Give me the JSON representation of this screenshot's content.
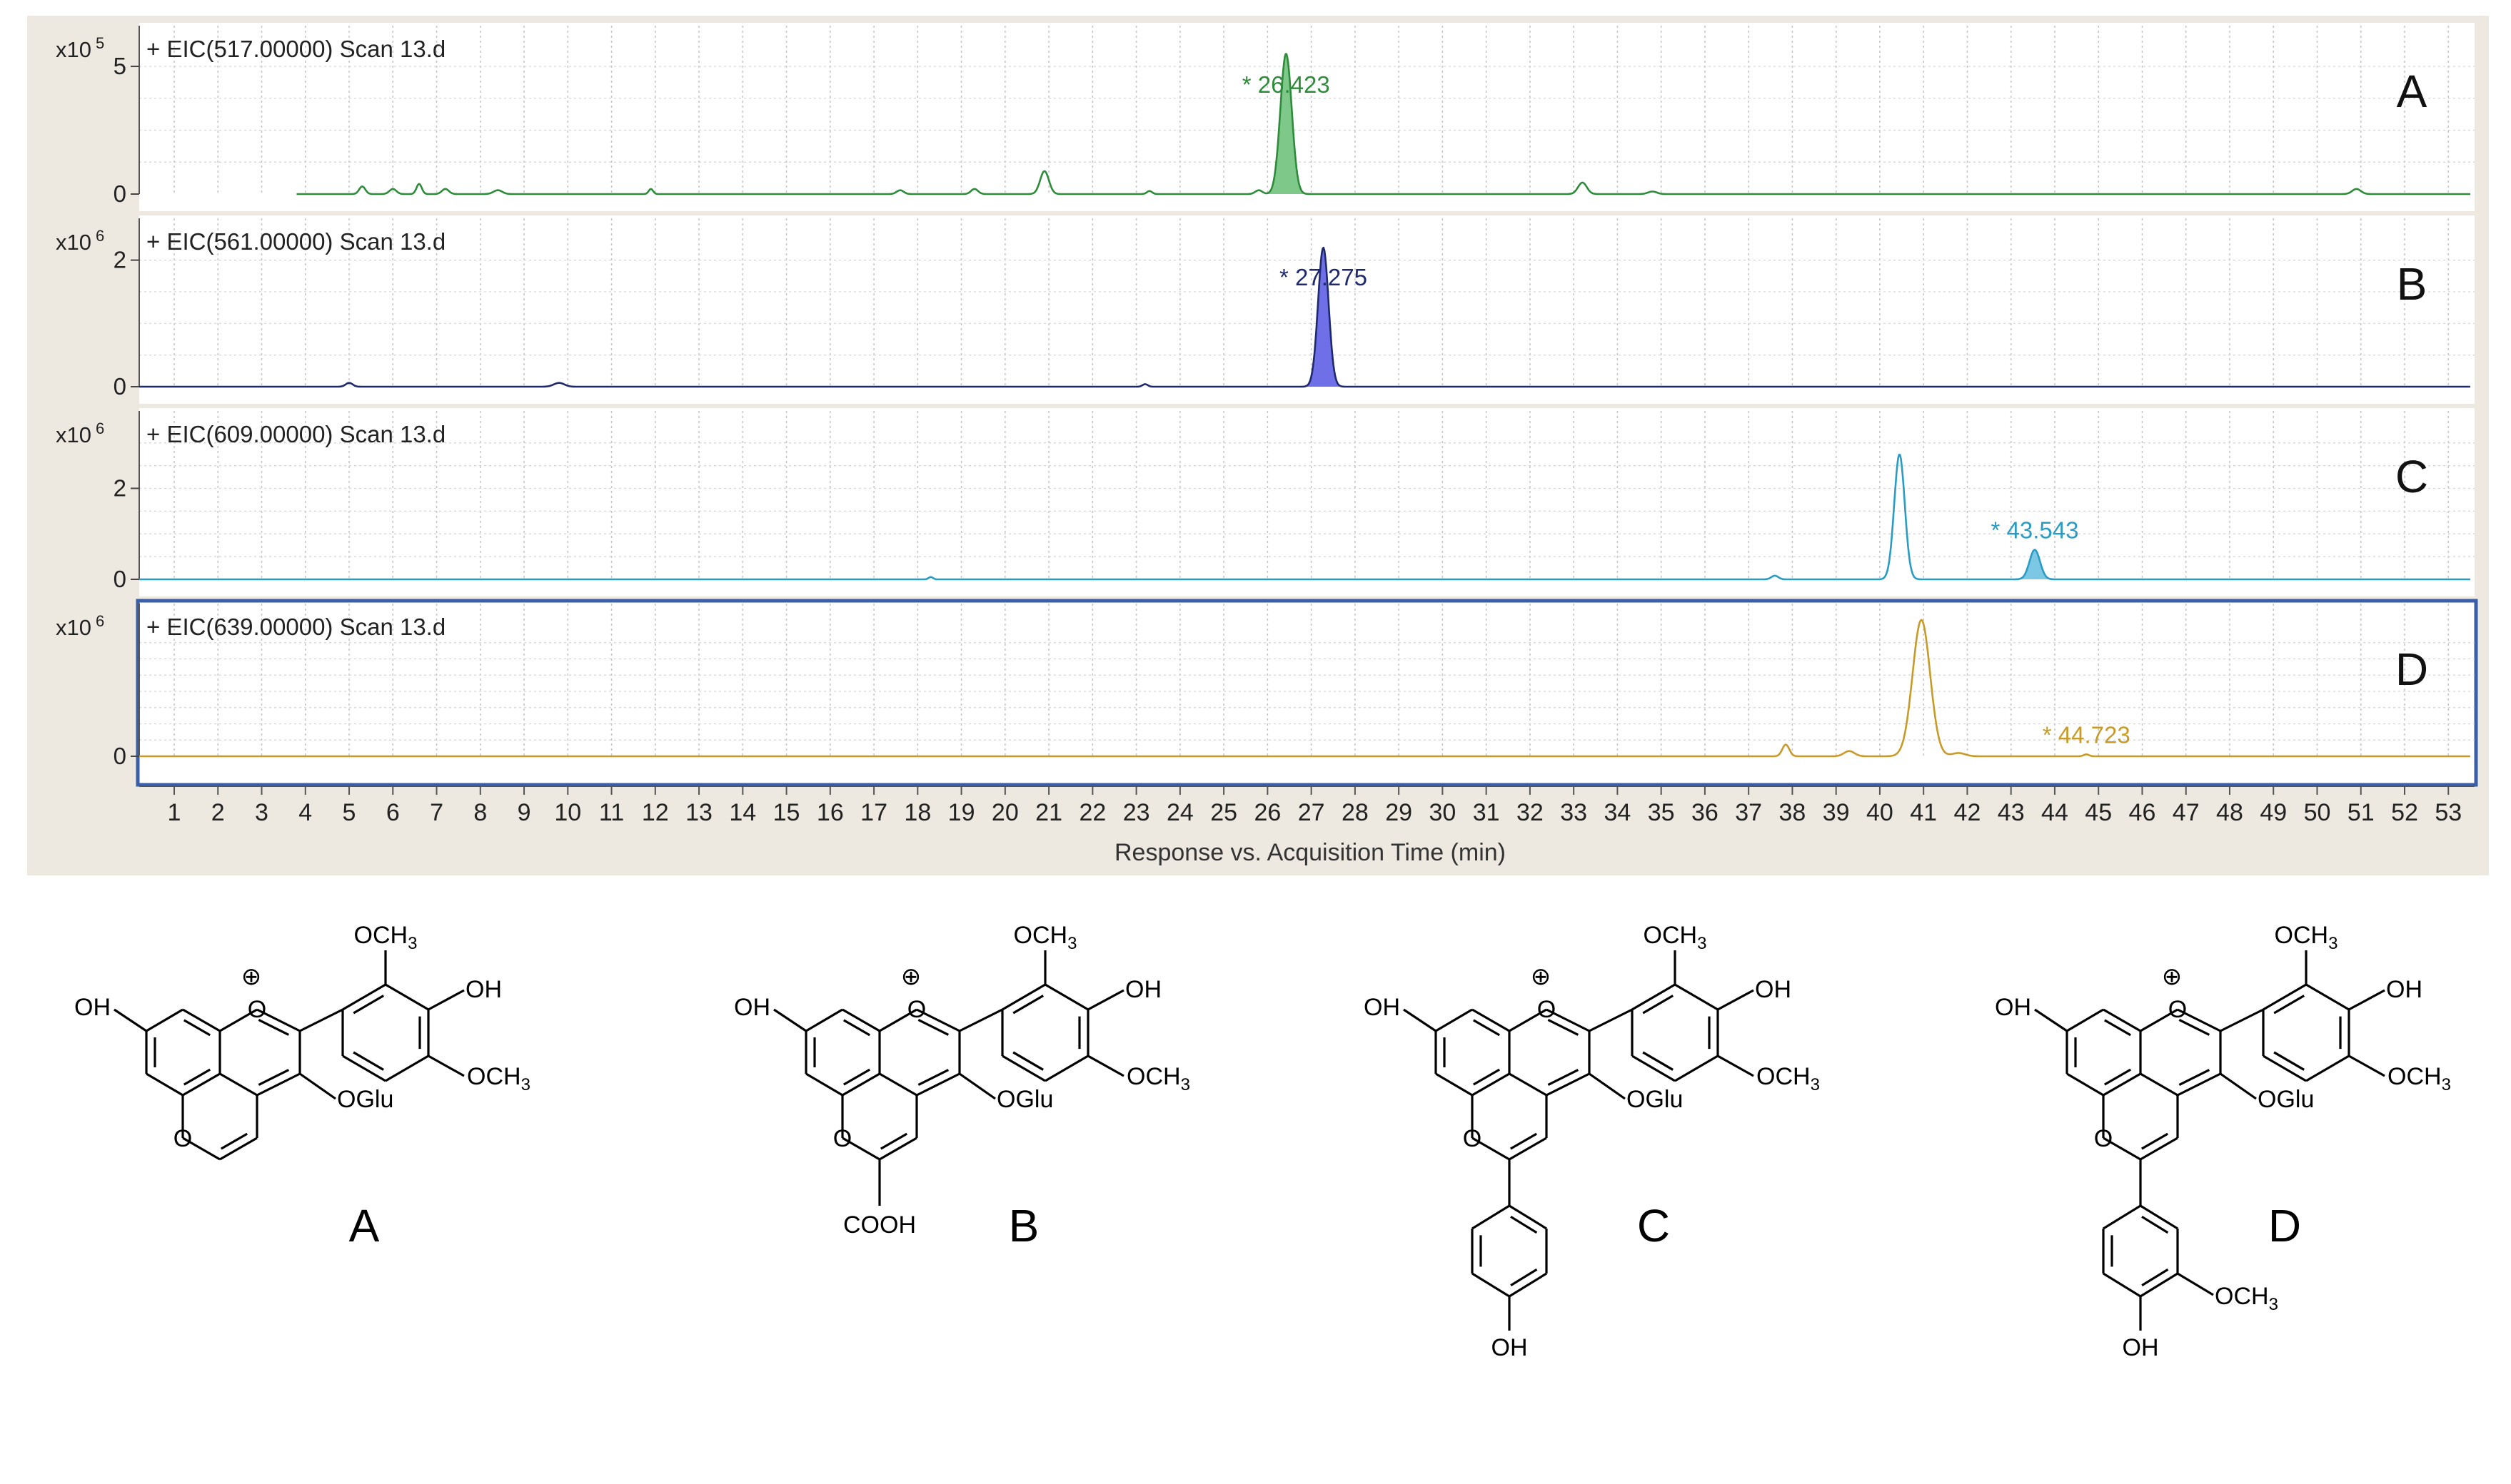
{
  "chart_data": {
    "type": "line",
    "xlabel": "Response vs. Acquisition Time (min)",
    "x_ticks": [
      1,
      2,
      3,
      4,
      5,
      6,
      7,
      8,
      9,
      10,
      11,
      12,
      13,
      14,
      15,
      16,
      17,
      18,
      19,
      20,
      21,
      22,
      23,
      24,
      25,
      26,
      27,
      28,
      29,
      30,
      31,
      32,
      33,
      34,
      35,
      36,
      37,
      38,
      39,
      40,
      41,
      42,
      43,
      44,
      45,
      46,
      47,
      48,
      49,
      50,
      51,
      52,
      53
    ],
    "xlim": [
      0.2,
      53.6
    ],
    "grid": true,
    "panels": [
      {
        "id": "A",
        "title": "+ EIC(517.00000) Scan 13.d",
        "scale_label": "x10",
        "scale_exp": "5",
        "y_ticks": [
          "0",
          "5"
        ],
        "y_tick_values": [
          0,
          5
        ],
        "ylim": [
          0,
          5.7
        ],
        "color": "#2e8b3a",
        "fill": "#7ec98a",
        "annotation": "* 26.423",
        "annotation_x": 26.423,
        "panel_letter": "A",
        "baseline_start": 3.8,
        "peaks": [
          {
            "x": 26.423,
            "h": 5.5,
            "w": 0.13,
            "filled": true
          },
          {
            "x": 20.9,
            "h": 0.9,
            "w": 0.1
          },
          {
            "x": 33.2,
            "h": 0.45,
            "w": 0.1
          },
          {
            "x": 6.6,
            "h": 0.4,
            "w": 0.06
          },
          {
            "x": 5.3,
            "h": 0.3,
            "w": 0.07
          },
          {
            "x": 6.0,
            "h": 0.2,
            "w": 0.08
          },
          {
            "x": 7.2,
            "h": 0.2,
            "w": 0.08
          },
          {
            "x": 8.4,
            "h": 0.15,
            "w": 0.1
          },
          {
            "x": 11.9,
            "h": 0.2,
            "w": 0.05
          },
          {
            "x": 17.6,
            "h": 0.15,
            "w": 0.08
          },
          {
            "x": 19.3,
            "h": 0.2,
            "w": 0.08
          },
          {
            "x": 23.3,
            "h": 0.12,
            "w": 0.06
          },
          {
            "x": 25.8,
            "h": 0.15,
            "w": 0.08
          },
          {
            "x": 34.8,
            "h": 0.1,
            "w": 0.1
          },
          {
            "x": 50.9,
            "h": 0.2,
            "w": 0.1
          }
        ]
      },
      {
        "id": "B",
        "title": "+ EIC(561.00000) Scan 13.d",
        "scale_label": "x10",
        "scale_exp": "6",
        "y_ticks": [
          "0",
          "2"
        ],
        "y_tick_values": [
          0,
          2
        ],
        "ylim": [
          0,
          2.3
        ],
        "color": "#1f2a6e",
        "fill": "#6f6fe8",
        "annotation": "* 27.275",
        "annotation_x": 27.275,
        "panel_letter": "B",
        "baseline_start": 0.2,
        "peaks": [
          {
            "x": 27.275,
            "h": 2.2,
            "w": 0.12,
            "filled": true
          },
          {
            "x": 5.0,
            "h": 0.06,
            "w": 0.08
          },
          {
            "x": 9.8,
            "h": 0.06,
            "w": 0.12
          },
          {
            "x": 23.2,
            "h": 0.04,
            "w": 0.06
          }
        ]
      },
      {
        "id": "C",
        "title": "+ EIC(609.00000) Scan 13.d",
        "scale_label": "x10",
        "scale_exp": "6",
        "y_ticks": [
          "0",
          "2"
        ],
        "y_tick_values": [
          0,
          2
        ],
        "ylim": [
          0,
          3.2
        ],
        "color": "#2a9cc4",
        "fill": "#7cc7e4",
        "annotation": "* 43.543",
        "annotation_x": 43.543,
        "panel_letter": "C",
        "baseline_start": 0.2,
        "peaks": [
          {
            "x": 40.45,
            "h": 2.75,
            "w": 0.12
          },
          {
            "x": 43.543,
            "h": 0.65,
            "w": 0.12,
            "filled": true
          },
          {
            "x": 37.6,
            "h": 0.08,
            "w": 0.08
          },
          {
            "x": 18.3,
            "h": 0.05,
            "w": 0.05
          }
        ]
      },
      {
        "id": "D",
        "title": "+ EIC(639.00000) Scan 13.d",
        "scale_label": "x10",
        "scale_exp": "6",
        "y_ticks": [
          "0"
        ],
        "y_tick_values": [
          0
        ],
        "ylim": [
          0,
          2.0
        ],
        "color": "#c89a28",
        "fill": "#e8c870",
        "annotation": "* 44.723",
        "annotation_x": 44.723,
        "panel_letter": "D",
        "baseline_start": 0.2,
        "selected": true,
        "peaks": [
          {
            "x": 40.95,
            "h": 2.1,
            "w": 0.2
          },
          {
            "x": 37.85,
            "h": 0.18,
            "w": 0.08
          },
          {
            "x": 39.3,
            "h": 0.08,
            "w": 0.12
          },
          {
            "x": 41.8,
            "h": 0.05,
            "w": 0.15
          },
          {
            "x": 44.723,
            "h": 0.03,
            "w": 0.06
          }
        ]
      }
    ]
  },
  "structures": [
    {
      "letter": "A",
      "variant": "none",
      "labels": {
        "och3_top": "OCH3",
        "oh_right": "OH",
        "och3_right": "OCH3",
        "oglu": "OGlu",
        "oh_left": "OH",
        "plus": "⊕",
        "ring_o": "O",
        "bottom_o": "O"
      }
    },
    {
      "letter": "B",
      "variant": "cooh",
      "labels": {
        "och3_top": "OCH3",
        "oh_right": "OH",
        "och3_right": "OCH3",
        "oglu": "OGlu",
        "oh_left": "OH",
        "plus": "⊕",
        "ring_o": "O",
        "bottom_o": "O",
        "sub": "COOH"
      }
    },
    {
      "letter": "C",
      "variant": "phenol",
      "labels": {
        "och3_top": "OCH3",
        "oh_right": "OH",
        "och3_right": "OCH3",
        "oglu": "OGlu",
        "oh_left": "OH",
        "plus": "⊕",
        "ring_o": "O",
        "bottom_o": "O",
        "sub_oh": "OH"
      }
    },
    {
      "letter": "D",
      "variant": "guaiacyl",
      "labels": {
        "och3_top": "OCH3",
        "oh_right": "OH",
        "och3_right": "OCH3",
        "oglu": "OGlu",
        "oh_left": "OH",
        "plus": "⊕",
        "ring_o": "O",
        "bottom_o": "O",
        "sub_oh": "OH",
        "sub_och3": "OCH3"
      }
    }
  ]
}
